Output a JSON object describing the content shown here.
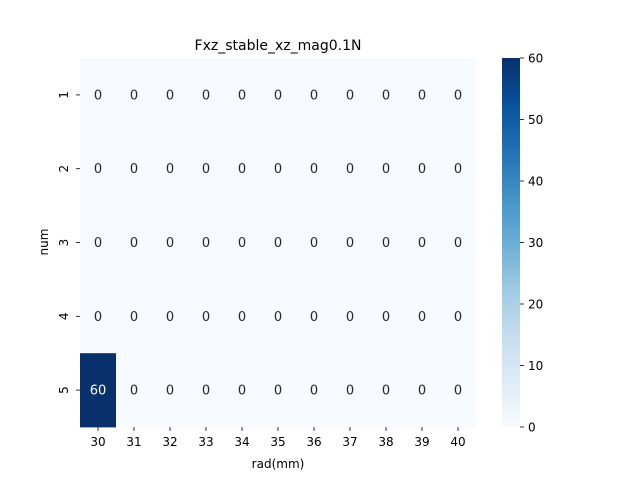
{
  "chart_data": {
    "type": "heatmap",
    "title": "Fxz_stable_xz_mag0.1N",
    "xlabel": "rad(mm)",
    "ylabel": "num",
    "x_categories": [
      "30",
      "31",
      "32",
      "33",
      "34",
      "35",
      "36",
      "37",
      "38",
      "39",
      "40"
    ],
    "y_categories": [
      "1",
      "2",
      "3",
      "4",
      "5"
    ],
    "values": [
      [
        0,
        0,
        0,
        0,
        0,
        0,
        0,
        0,
        0,
        0,
        0
      ],
      [
        0,
        0,
        0,
        0,
        0,
        0,
        0,
        0,
        0,
        0,
        0
      ],
      [
        0,
        0,
        0,
        0,
        0,
        0,
        0,
        0,
        0,
        0,
        0
      ],
      [
        0,
        0,
        0,
        0,
        0,
        0,
        0,
        0,
        0,
        0,
        0
      ],
      [
        60,
        0,
        0,
        0,
        0,
        0,
        0,
        0,
        0,
        0,
        0
      ]
    ],
    "colormap": "Blues",
    "color_low": "#f7fbff",
    "color_high": "#08306b",
    "colorbar": {
      "range": [
        0,
        60
      ],
      "ticks": [
        "0",
        "10",
        "20",
        "30",
        "40",
        "50",
        "60"
      ]
    },
    "annotations": true,
    "grid": false
  }
}
